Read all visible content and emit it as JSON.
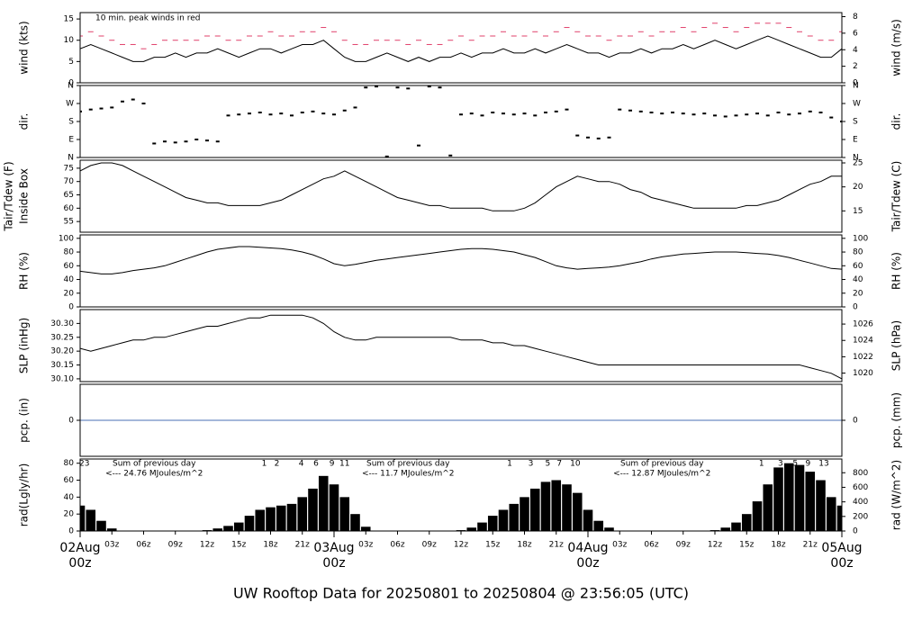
{
  "title": "UW Rooftop Data for 20250801  to  20250804 @ 23:56:05  (UTC)",
  "title_color": "#2a8fd6",
  "x_axis": {
    "xlim": [
      0,
      72
    ],
    "x": [
      0,
      1,
      2,
      3,
      4,
      5,
      6,
      7,
      8,
      9,
      10,
      11,
      12,
      13,
      14,
      15,
      16,
      17,
      18,
      19,
      20,
      21,
      22,
      23,
      24,
      25,
      26,
      27,
      28,
      29,
      30,
      31,
      32,
      33,
      34,
      35,
      36,
      37,
      38,
      39,
      40,
      41,
      42,
      43,
      44,
      45,
      46,
      47,
      48,
      49,
      50,
      51,
      52,
      53,
      54,
      55,
      56,
      57,
      58,
      59,
      60,
      61,
      62,
      63,
      64,
      65,
      66,
      67,
      68,
      69,
      70,
      71,
      72
    ],
    "xticks": [
      {
        "value": 3,
        "label": "03z"
      },
      {
        "value": 6,
        "label": "06z"
      },
      {
        "value": 9,
        "label": "09z"
      },
      {
        "value": 12,
        "label": "12z"
      },
      {
        "value": 15,
        "label": "15z"
      },
      {
        "value": 18,
        "label": "18z"
      },
      {
        "value": 21,
        "label": "21z"
      },
      {
        "value": 27,
        "label": "03z"
      },
      {
        "value": 30,
        "label": "06z"
      },
      {
        "value": 33,
        "label": "09z"
      },
      {
        "value": 36,
        "label": "12z"
      },
      {
        "value": 39,
        "label": "15z"
      },
      {
        "value": 42,
        "label": "18z"
      },
      {
        "value": 45,
        "label": "21z"
      },
      {
        "value": 51,
        "label": "03z"
      },
      {
        "value": 54,
        "label": "06z"
      },
      {
        "value": 57,
        "label": "09z"
      },
      {
        "value": 60,
        "label": "12z"
      },
      {
        "value": 63,
        "label": "15z"
      },
      {
        "value": 66,
        "label": "18z"
      },
      {
        "value": 69,
        "label": "21z"
      }
    ],
    "day_ticks": [
      {
        "value": 0,
        "lines": [
          "02Aug",
          "00z"
        ]
      },
      {
        "value": 24,
        "lines": [
          "03Aug",
          "00z"
        ]
      },
      {
        "value": 48,
        "lines": [
          "04Aug",
          "00z"
        ]
      },
      {
        "value": 72,
        "lines": [
          "05Aug",
          "00z"
        ]
      }
    ],
    "day_color": "#d9506e"
  },
  "chart_data": [
    {
      "type": "line",
      "ylabel": [
        "wind (kts)"
      ],
      "y2label": "wind (m/s)",
      "ylim": [
        0,
        16.5
      ],
      "yticks": [
        0,
        5,
        10,
        15
      ],
      "y2lim": [
        0,
        8.49
      ],
      "y2ticks": [
        0,
        2,
        4,
        6,
        8
      ],
      "annotation": "10 min. peak winds in red",
      "annotation_color": "#e0406a",
      "series": [
        {
          "name": "wind",
          "color": "#000000",
          "marker": "line",
          "values": [
            8,
            9,
            8,
            7,
            6,
            5,
            5,
            6,
            6,
            7,
            6,
            7,
            7,
            8,
            7,
            6,
            7,
            8,
            8,
            7,
            8,
            9,
            9,
            10,
            8,
            6,
            5,
            5,
            6,
            7,
            6,
            5,
            6,
            5,
            6,
            6,
            7,
            6,
            7,
            7,
            8,
            7,
            7,
            8,
            7,
            8,
            9,
            8,
            7,
            7,
            6,
            7,
            7,
            8,
            7,
            8,
            8,
            9,
            8,
            9,
            10,
            9,
            8,
            9,
            10,
            11,
            10,
            9,
            8,
            7,
            6,
            6,
            8
          ]
        },
        {
          "name": "peak",
          "color": "#e0406a",
          "marker": "dash",
          "values": [
            11,
            12,
            11,
            10,
            9,
            9,
            8,
            9,
            10,
            10,
            10,
            10,
            11,
            11,
            10,
            10,
            11,
            11,
            12,
            11,
            11,
            12,
            12,
            13,
            12,
            10,
            9,
            9,
            10,
            10,
            10,
            9,
            10,
            9,
            9,
            10,
            11,
            10,
            11,
            11,
            12,
            11,
            11,
            12,
            11,
            12,
            13,
            12,
            11,
            11,
            10,
            11,
            11,
            12,
            11,
            12,
            12,
            13,
            12,
            13,
            14,
            13,
            12,
            13,
            14,
            14,
            14,
            13,
            12,
            11,
            10,
            10,
            12
          ]
        }
      ]
    },
    {
      "type": "scatter",
      "ylabel": [
        "dir."
      ],
      "y2label": "dir.",
      "ylim": [
        0,
        360
      ],
      "yticks": [
        {
          "value": 0,
          "label": "N"
        },
        {
          "value": 90,
          "label": "E"
        },
        {
          "value": 180,
          "label": "S"
        },
        {
          "value": 270,
          "label": "W"
        },
        {
          "value": 360,
          "label": "N"
        }
      ],
      "series": [
        {
          "name": "direction",
          "color": "#000000",
          "values": [
            230,
            240,
            245,
            250,
            280,
            290,
            270,
            70,
            80,
            75,
            80,
            90,
            85,
            80,
            210,
            215,
            220,
            225,
            215,
            220,
            210,
            225,
            230,
            220,
            215,
            235,
            250,
            350,
            355,
            5,
            350,
            345,
            60,
            355,
            350,
            10,
            215,
            220,
            210,
            225,
            220,
            215,
            220,
            210,
            225,
            230,
            240,
            110,
            100,
            95,
            100,
            240,
            235,
            230,
            225,
            220,
            225,
            220,
            215,
            220,
            210,
            205,
            210,
            215,
            220,
            210,
            225,
            215,
            220,
            230,
            225,
            200,
            180
          ]
        }
      ]
    },
    {
      "type": "line",
      "ylabel": [
        "Tair/Tdew (F)",
        "Inside Box"
      ],
      "y2label": "Tair/Tdew (C)",
      "ylim": [
        51,
        78
      ],
      "yticks": [
        55,
        60,
        65,
        70,
        75
      ],
      "y2lim": [
        10.56,
        25.56
      ],
      "y2ticks": [
        15,
        20,
        25
      ],
      "series": [
        {
          "name": "tair",
          "color": "#000000",
          "marker": "line",
          "values": [
            74,
            76,
            77,
            77,
            76,
            74,
            72,
            70,
            68,
            66,
            64,
            63,
            62,
            62,
            61,
            61,
            61,
            61,
            62,
            63,
            65,
            67,
            69,
            71,
            72,
            74,
            72,
            70,
            68,
            66,
            64,
            63,
            62,
            61,
            61,
            60,
            60,
            60,
            60,
            59,
            59,
            59,
            60,
            62,
            65,
            68,
            70,
            72,
            71,
            70,
            70,
            69,
            67,
            66,
            64,
            63,
            62,
            61,
            60,
            60,
            60,
            60,
            60,
            61,
            61,
            62,
            63,
            65,
            67,
            69,
            70,
            72,
            72
          ]
        }
      ]
    },
    {
      "type": "line",
      "ylabel": [
        "RH (%)"
      ],
      "y2label": "RH (%)",
      "ylim": [
        0,
        105
      ],
      "yticks": [
        0,
        20,
        40,
        60,
        80,
        100
      ],
      "y2lim": [
        0,
        105
      ],
      "y2ticks": [
        0,
        20,
        40,
        60,
        80,
        100
      ],
      "series": [
        {
          "name": "rh",
          "color": "#000000",
          "marker": "line",
          "values": [
            52,
            50,
            48,
            48,
            50,
            53,
            55,
            57,
            60,
            65,
            70,
            75,
            80,
            84,
            86,
            88,
            88,
            87,
            86,
            85,
            83,
            80,
            76,
            70,
            63,
            60,
            62,
            65,
            68,
            70,
            72,
            74,
            76,
            78,
            80,
            82,
            84,
            85,
            85,
            84,
            82,
            80,
            76,
            72,
            66,
            60,
            57,
            55,
            56,
            57,
            58,
            60,
            63,
            66,
            70,
            73,
            75,
            77,
            78,
            79,
            80,
            80,
            80,
            79,
            78,
            77,
            75,
            72,
            68,
            64,
            60,
            56,
            55
          ]
        }
      ]
    },
    {
      "type": "line",
      "ylabel": [
        "SLP (inHg)"
      ],
      "y2label": "SLP (hPa)",
      "ylim": [
        30.09,
        30.35
      ],
      "yticks": [
        {
          "value": 30.1,
          "label": "30.10"
        },
        {
          "value": 30.15,
          "label": "30.15"
        },
        {
          "value": 30.2,
          "label": "30.20"
        },
        {
          "value": 30.25,
          "label": "30.25"
        },
        {
          "value": 30.3,
          "label": "30.30"
        }
      ],
      "y2lim": [
        1018.96,
        1027.77
      ],
      "y2ticks": [
        1020,
        1022,
        1024,
        1026
      ],
      "series": [
        {
          "name": "slp",
          "color": "#000000",
          "marker": "line",
          "values": [
            30.21,
            30.2,
            30.21,
            30.22,
            30.23,
            30.24,
            30.24,
            30.25,
            30.25,
            30.26,
            30.27,
            30.28,
            30.29,
            30.29,
            30.3,
            30.31,
            30.32,
            30.32,
            30.33,
            30.33,
            30.33,
            30.33,
            30.32,
            30.3,
            30.27,
            30.25,
            30.24,
            30.24,
            30.25,
            30.25,
            30.25,
            30.25,
            30.25,
            30.25,
            30.25,
            30.25,
            30.24,
            30.24,
            30.24,
            30.23,
            30.23,
            30.22,
            30.22,
            30.21,
            30.2,
            30.19,
            30.18,
            30.17,
            30.16,
            30.15,
            30.15,
            30.15,
            30.15,
            30.15,
            30.15,
            30.15,
            30.15,
            30.15,
            30.15,
            30.15,
            30.15,
            30.15,
            30.15,
            30.15,
            30.15,
            30.15,
            30.15,
            30.15,
            30.15,
            30.14,
            30.13,
            30.12,
            30.1
          ]
        }
      ]
    },
    {
      "type": "line",
      "ylabel": [
        "pcp. (in)"
      ],
      "y2label": "pcp. (mm)",
      "ylim": [
        -1,
        1
      ],
      "yticks": [
        0
      ],
      "y2lim": [
        -25.4,
        25.4
      ],
      "y2ticks": [
        0
      ],
      "series": [
        {
          "name": "pcp",
          "color": "#4a6fb5",
          "marker": "line",
          "values": [
            0,
            0,
            0,
            0,
            0,
            0,
            0,
            0,
            0,
            0,
            0,
            0,
            0,
            0,
            0,
            0,
            0,
            0,
            0,
            0,
            0,
            0,
            0,
            0,
            0,
            0,
            0,
            0,
            0,
            0,
            0,
            0,
            0,
            0,
            0,
            0,
            0,
            0,
            0,
            0,
            0,
            0,
            0,
            0,
            0,
            0,
            0,
            0,
            0,
            0,
            0,
            0,
            0,
            0,
            0,
            0,
            0,
            0,
            0,
            0,
            0,
            0,
            0,
            0,
            0,
            0,
            0,
            0,
            0,
            0,
            0,
            0,
            0
          ]
        }
      ]
    },
    {
      "type": "bar",
      "ylabel": [
        "rad(Lgly/hr)"
      ],
      "y2label": "rad (W/m^2)",
      "ylim": [
        0,
        85
      ],
      "yticks": [
        0,
        20,
        40,
        60,
        80
      ],
      "y2lim": [
        0,
        988.6
      ],
      "y2ticks": [
        0,
        200,
        400,
        600,
        800
      ],
      "note_color": "#9b30d9",
      "hour_marks": [
        {
          "x": 0.4,
          "label": "23"
        },
        {
          "x": 17.4,
          "label": "1"
        },
        {
          "x": 18.6,
          "label": "2"
        },
        {
          "x": 20.9,
          "label": "4"
        },
        {
          "x": 22.3,
          "label": "6"
        },
        {
          "x": 23.8,
          "label": "9"
        },
        {
          "x": 25.0,
          "label": "11"
        },
        {
          "x": 40.6,
          "label": "1"
        },
        {
          "x": 42.6,
          "label": "3"
        },
        {
          "x": 44.2,
          "label": "5"
        },
        {
          "x": 45.3,
          "label": "7"
        },
        {
          "x": 46.8,
          "label": "10"
        },
        {
          "x": 64.4,
          "label": "1"
        },
        {
          "x": 66.2,
          "label": "3"
        },
        {
          "x": 67.6,
          "label": "5"
        },
        {
          "x": 68.8,
          "label": "9"
        },
        {
          "x": 70.3,
          "label": "13"
        }
      ],
      "daily_sums": [
        {
          "title": "Sum of previous day",
          "text": "<--- 24.76 MJoules/m^2"
        },
        {
          "title": "Sum of previous day",
          "text": "<--- 11.7 MJoules/m^2"
        },
        {
          "title": "Sum of previous day",
          "text": "<--- 12.87 MJoules/m^2"
        }
      ],
      "series": [
        {
          "name": "rad",
          "color": "#000000",
          "values": [
            30,
            25,
            12,
            3,
            0,
            0,
            0,
            0,
            0,
            0,
            0,
            0,
            1,
            3,
            6,
            10,
            18,
            25,
            28,
            30,
            32,
            40,
            50,
            65,
            55,
            40,
            20,
            5,
            0,
            0,
            0,
            0,
            0,
            0,
            0,
            0,
            1,
            4,
            10,
            18,
            25,
            32,
            40,
            50,
            58,
            60,
            55,
            45,
            25,
            12,
            4,
            0,
            0,
            0,
            0,
            0,
            0,
            0,
            0,
            0,
            1,
            4,
            10,
            20,
            35,
            55,
            75,
            80,
            78,
            70,
            60,
            40,
            30
          ]
        }
      ]
    }
  ]
}
